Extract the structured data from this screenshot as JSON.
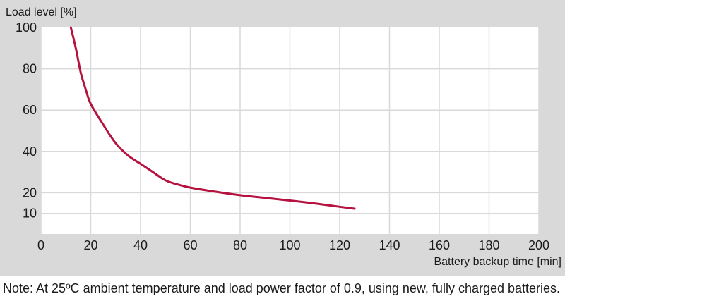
{
  "chart_data": {
    "type": "line",
    "ylabel": "Load level [%]",
    "xlabel": "Battery backup time [min]",
    "xlim": [
      0,
      200
    ],
    "ylim": [
      0,
      100
    ],
    "x_ticks": [
      0,
      20,
      40,
      60,
      80,
      100,
      120,
      140,
      160,
      180,
      200
    ],
    "y_ticks": [
      10,
      20,
      40,
      60,
      80,
      100
    ],
    "grid": true,
    "series": [
      {
        "color": "#b5123f",
        "x": [
          12,
          14,
          16,
          18,
          20,
          25,
          30,
          35,
          40,
          45,
          50,
          55,
          60,
          70,
          80,
          90,
          100,
          110,
          120,
          126
        ],
        "y": [
          100,
          90,
          78,
          70,
          63,
          53,
          44,
          38,
          34,
          30,
          26,
          24,
          22.5,
          20.5,
          18.8,
          17.5,
          16.2,
          14.8,
          13.2,
          12.3
        ]
      }
    ]
  },
  "note": "Note: At 25ºC ambient temperature and load power factor of 0.9, using new, fully charged batteries."
}
